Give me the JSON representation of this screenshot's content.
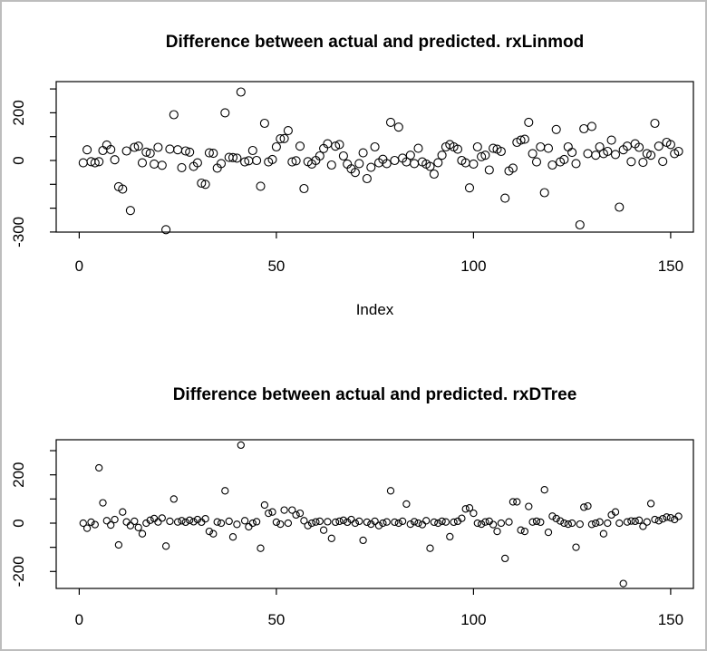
{
  "window": {
    "background": "#ffffff",
    "border_color": "#bdbdbd",
    "axis_color": "#000000"
  },
  "chart_data": [
    {
      "type": "scatter",
      "title": "Difference between actual and predicted. rxLinmod",
      "xlabel": "Index",
      "ylabel": "",
      "x_is_index": true,
      "marker": "open-circle",
      "marker_color": "#000000",
      "xlim": [
        -5.8,
        156.2
      ],
      "ylim": [
        -296,
        331
      ],
      "x_ticks": [
        0,
        50,
        100,
        150
      ],
      "y_ticks": [
        300,
        200,
        100,
        0,
        -100,
        -200,
        -300
      ],
      "y_tick_labels_shown": [
        200,
        0,
        -300
      ],
      "grid": false,
      "values": [
        -10,
        45,
        -5,
        -10,
        -5,
        42,
        65,
        46,
        3,
        -110,
        -120,
        40,
        -210,
        55,
        60,
        -10,
        35,
        30,
        -15,
        55,
        -20,
        -290,
        48,
        192,
        45,
        -30,
        40,
        35,
        -25,
        -10,
        -95,
        -100,
        32,
        30,
        -32,
        -13,
        200,
        13,
        12,
        10,
        287,
        -6,
        -1,
        42,
        0,
        -108,
        156,
        -6,
        4,
        57,
        91,
        92,
        125,
        -6,
        -1,
        60,
        -118,
        -5,
        -15,
        0,
        19,
        50,
        70,
        -19,
        60,
        67,
        19,
        -15,
        -35,
        -50,
        -13,
        32,
        -76,
        -29,
        57,
        -10,
        5,
        -13,
        160,
        0,
        140,
        10,
        -6,
        22,
        -13,
        51,
        -6,
        -15,
        -25,
        -57,
        -9,
        22,
        57,
        67,
        57,
        47,
        0,
        -10,
        -115,
        -15,
        57,
        16,
        22,
        -40,
        51,
        47,
        38,
        -158,
        -44,
        -32,
        76,
        85,
        89,
        160,
        29,
        -6,
        57,
        -135,
        51,
        -19,
        130,
        -6,
        4,
        57,
        34,
        -13,
        -270,
        133,
        29,
        143,
        22,
        57,
        29,
        38,
        85,
        25,
        -196,
        45,
        60,
        -5,
        70,
        55,
        -8,
        29,
        22,
        156,
        60,
        -4,
        76,
        67,
        29,
        38
      ]
    },
    {
      "type": "scatter",
      "title": "Difference between actual and predicted. rxDTree",
      "xlabel": "",
      "ylabel": "",
      "x_is_index": true,
      "marker": "open-circle",
      "marker_color": "#000000",
      "xlim": [
        -5.8,
        155.8
      ],
      "ylim": [
        -270,
        345
      ],
      "x_ticks": [
        0,
        50,
        100,
        150
      ],
      "y_ticks": [
        300,
        200,
        100,
        0,
        -100,
        -200
      ],
      "y_tick_labels_shown": [
        200,
        0,
        -200
      ],
      "grid": false,
      "values": [
        0,
        -21,
        4,
        -6,
        229,
        84,
        10,
        -8,
        15,
        -90,
        46,
        5,
        -10,
        8,
        -18,
        -44,
        0,
        12,
        19,
        5,
        21,
        -95,
        8,
        100,
        5,
        10,
        4,
        12,
        6,
        15,
        4,
        18,
        -34,
        -44,
        5,
        0,
        134,
        8,
        -57,
        -5,
        323,
        10,
        -15,
        0,
        6,
        -104,
        75,
        41,
        46,
        4,
        -4,
        54,
        0,
        54,
        34,
        41,
        10,
        -10,
        0,
        5,
        8,
        -29,
        6,
        -63,
        4,
        8,
        12,
        4,
        15,
        0,
        8,
        -71,
        4,
        -4,
        8,
        -10,
        0,
        5,
        134,
        4,
        0,
        8,
        79,
        -4,
        6,
        0,
        -6,
        10,
        -104,
        4,
        0,
        8,
        5,
        -56,
        4,
        8,
        20,
        59,
        63,
        41,
        0,
        -4,
        5,
        8,
        -6,
        -34,
        0,
        -146,
        5,
        88,
        88,
        -29,
        -34,
        69,
        5,
        8,
        4,
        138,
        -38,
        29,
        19,
        9,
        0,
        -4,
        0,
        -100,
        -4,
        66,
        71,
        -5,
        0,
        5,
        -44,
        0,
        34,
        46,
        0,
        -250,
        5,
        9,
        8,
        12,
        -13,
        5,
        81,
        15,
        10,
        18,
        25,
        22,
        15,
        28
      ]
    }
  ]
}
